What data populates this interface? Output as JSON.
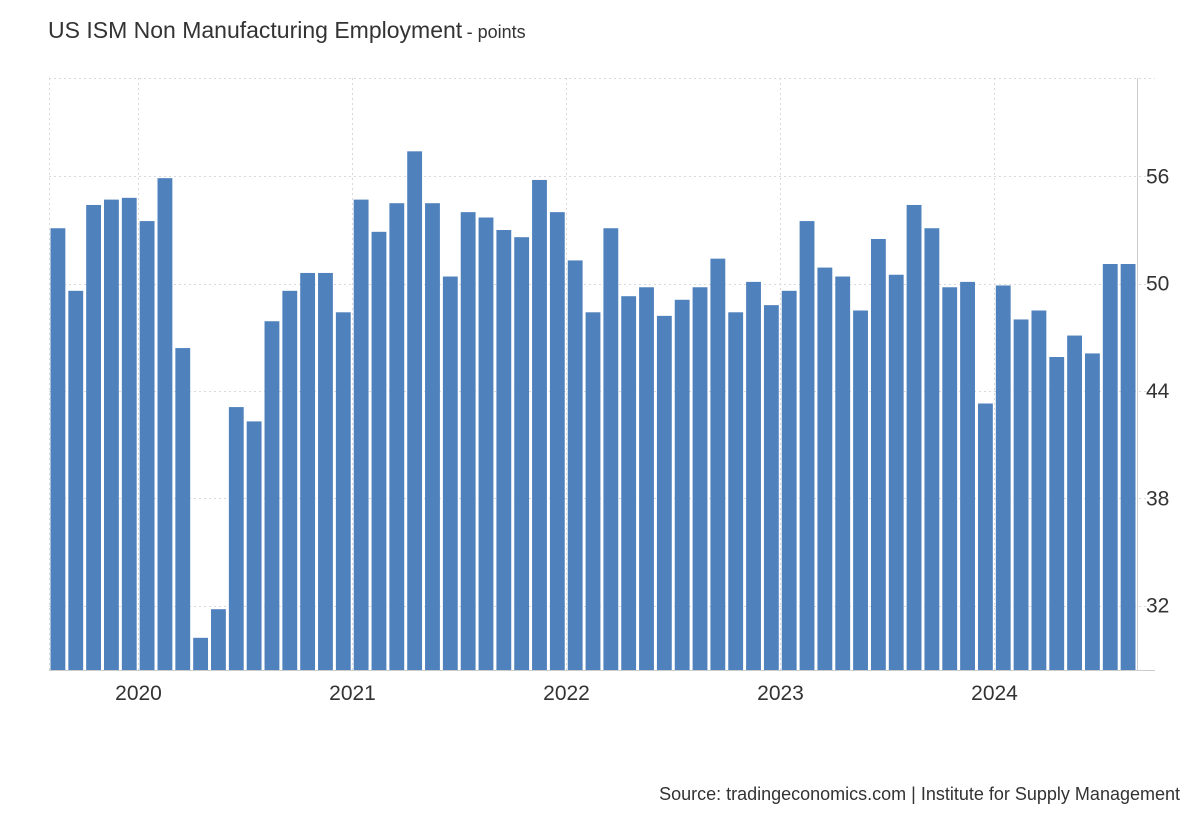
{
  "header": {
    "title": "US ISM Non Manufacturing Employment",
    "unit": "- points"
  },
  "footer": {
    "source": "Source: tradingeconomics.com | Institute for Supply Management"
  },
  "colors": {
    "bar": "#4f81bd",
    "grid": "#d9d9d9",
    "axis_text": "#333333"
  },
  "chart_data": {
    "type": "bar",
    "title": "US ISM Non Manufacturing Employment",
    "ylabel": "points",
    "xlabel": "",
    "ylim": [
      28.4,
      61.5
    ],
    "y_ticks": [
      32,
      38,
      44,
      50,
      56
    ],
    "y_axis_position": "right",
    "grid": true,
    "x_tick_labels": [
      "2020",
      "2021",
      "2022",
      "2023",
      "2024"
    ],
    "x_tick_dates": [
      "2020-01",
      "2021-01",
      "2022-01",
      "2023-01",
      "2024-01"
    ],
    "x": [
      "2019-08",
      "2019-09",
      "2019-10",
      "2019-11",
      "2019-12",
      "2020-01",
      "2020-02",
      "2020-03",
      "2020-04",
      "2020-05",
      "2020-06",
      "2020-07",
      "2020-08",
      "2020-09",
      "2020-10",
      "2020-11",
      "2020-12",
      "2021-01",
      "2021-02",
      "2021-03",
      "2021-04",
      "2021-05",
      "2021-06",
      "2021-07",
      "2021-08",
      "2021-09",
      "2021-10",
      "2021-11",
      "2021-12",
      "2022-01",
      "2022-02",
      "2022-03",
      "2022-04",
      "2022-05",
      "2022-06",
      "2022-07",
      "2022-08",
      "2022-09",
      "2022-10",
      "2022-11",
      "2022-12",
      "2023-01",
      "2023-02",
      "2023-03",
      "2023-04",
      "2023-05",
      "2023-06",
      "2023-07",
      "2023-08",
      "2023-09",
      "2023-10",
      "2023-11",
      "2023-12",
      "2024-01",
      "2024-02",
      "2024-03",
      "2024-04",
      "2024-05",
      "2024-06",
      "2024-07",
      "2024-08"
    ],
    "series": [
      {
        "values": [
          53.1,
          49.6,
          54.4,
          54.7,
          54.8,
          53.5,
          55.9,
          46.4,
          30.2,
          31.8,
          43.1,
          42.3,
          47.9,
          49.6,
          50.6,
          50.6,
          48.4,
          54.7,
          52.9,
          54.5,
          57.4,
          54.5,
          50.4,
          54.0,
          53.7,
          53.0,
          52.6,
          55.8,
          54.0,
          51.3,
          48.4,
          53.1,
          49.3,
          49.8,
          48.2,
          49.1,
          49.8,
          51.4,
          48.4,
          50.1,
          48.8,
          49.6,
          53.5,
          50.9,
          50.4,
          48.5,
          52.5,
          50.5,
          54.4,
          53.1,
          49.8,
          50.1,
          43.3,
          49.9,
          48.0,
          48.5,
          45.9,
          47.1,
          46.1,
          51.1,
          51.1
        ]
      }
    ]
  }
}
